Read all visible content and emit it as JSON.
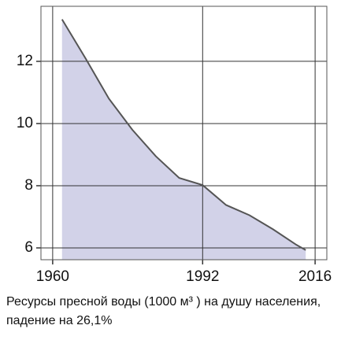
{
  "chart_data": {
    "type": "area",
    "title": "Ресурсы пресной воды (1000 м³ ) на душу населения, падение на 26,1%",
    "x": [
      1962,
      1967,
      1972,
      1977,
      1982,
      1987,
      1992,
      1997,
      2002,
      2007,
      2012,
      2014
    ],
    "values": [
      13.35,
      12.1,
      10.8,
      9.8,
      8.95,
      8.25,
      8.02,
      7.38,
      7.05,
      6.6,
      6.1,
      5.93
    ],
    "color": "#d2d2e8",
    "line_color": "#555555",
    "xlim": [
      1957.5,
      2018.5
    ],
    "ylim": [
      5.62,
      13.77
    ],
    "xticks": [
      1960,
      1992,
      2016
    ],
    "yticks": [
      6,
      8,
      10,
      12
    ],
    "grid": true
  }
}
